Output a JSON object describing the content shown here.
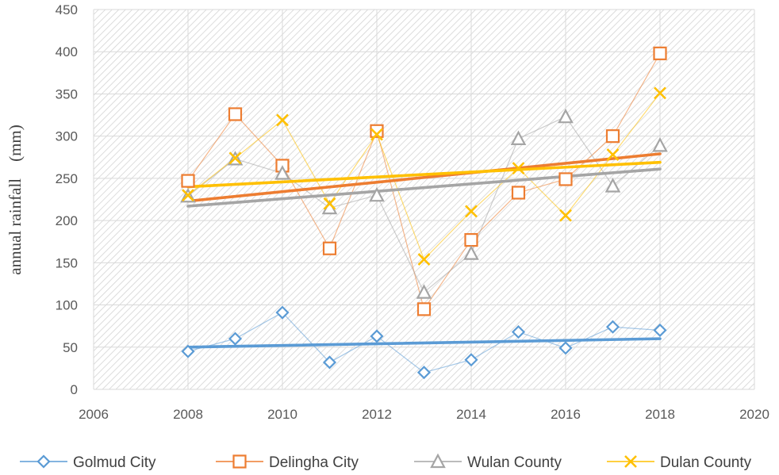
{
  "chart_data": {
    "type": "scatter",
    "title": "",
    "xlabel": "",
    "ylabel": "annual rainfall　(mm)",
    "xlim": [
      2006,
      2020
    ],
    "ylim": [
      0,
      450
    ],
    "xticks": [
      2006,
      2008,
      2010,
      2012,
      2014,
      2016,
      2018,
      2020
    ],
    "yticks": [
      0,
      50,
      100,
      150,
      200,
      250,
      300,
      350,
      400,
      450
    ],
    "grid": true,
    "legend_position": "bottom",
    "x": [
      2008,
      2009,
      2010,
      2011,
      2012,
      2013,
      2014,
      2015,
      2016,
      2017,
      2018
    ],
    "series": [
      {
        "name": "Golmud City",
        "color": "#5B9BD5",
        "marker": "diamond",
        "values": [
          45,
          60,
          91,
          32,
          63,
          20,
          35,
          68,
          49,
          74,
          70
        ],
        "trend": [
          50,
          60
        ]
      },
      {
        "name": "Delingha City",
        "color": "#ED7D31",
        "marker": "square",
        "values": [
          247,
          326,
          265,
          167,
          306,
          95,
          177,
          233,
          249,
          300,
          398
        ],
        "trend": [
          223,
          279
        ]
      },
      {
        "name": "Wulan County",
        "color": "#A5A5A5",
        "marker": "triangle",
        "values": [
          229,
          273,
          256,
          215,
          230,
          115,
          161,
          297,
          323,
          241,
          289
        ],
        "trend": [
          217,
          261
        ]
      },
      {
        "name": "Dulan County",
        "color": "#FFC000",
        "marker": "x",
        "values": [
          230,
          274,
          319,
          220,
          302,
          154,
          211,
          262,
          206,
          278,
          351
        ],
        "trend": [
          240,
          269
        ]
      }
    ]
  }
}
